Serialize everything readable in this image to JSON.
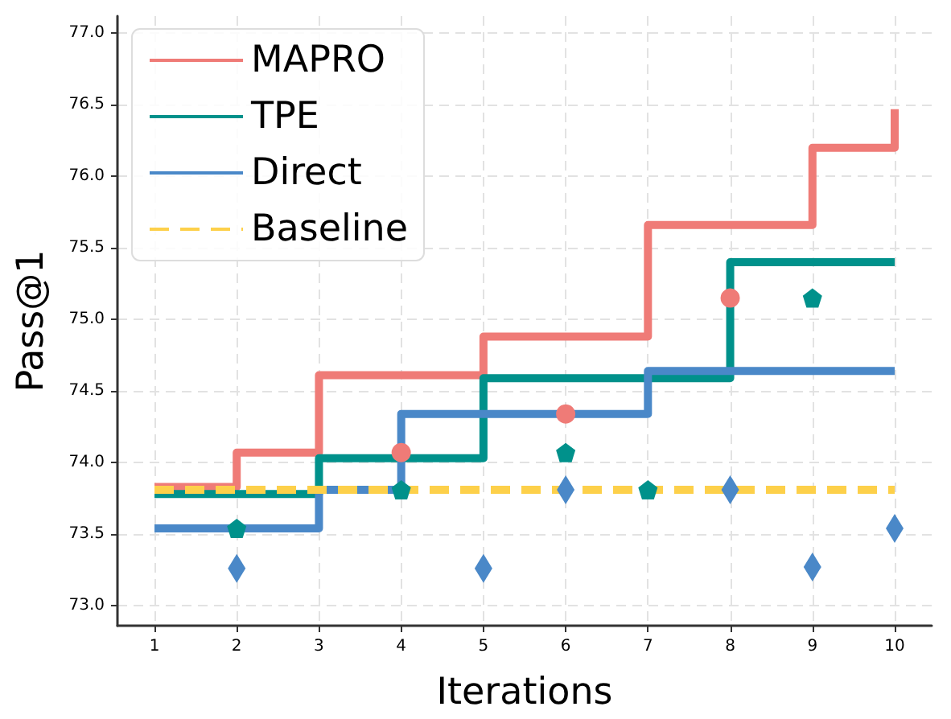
{
  "chart_data": {
    "type": "step",
    "xlabel": "Iterations",
    "ylabel": "Pass@1",
    "x": [
      1,
      2,
      3,
      4,
      5,
      6,
      7,
      8,
      9,
      10
    ],
    "xlim": [
      0.55,
      10.45
    ],
    "xticks": [
      1,
      2,
      3,
      4,
      5,
      6,
      7,
      8,
      9,
      10
    ],
    "ylim": [
      72.86,
      77.12
    ],
    "yticks": [
      {
        "value": 73,
        "label": "73.0"
      },
      73.5,
      {
        "value": 74,
        "label": "74.0"
      },
      74.5,
      {
        "value": 75,
        "label": "75.0"
      },
      75.5,
      {
        "value": 76,
        "label": "76.0"
      },
      76.5,
      {
        "value": 77,
        "label": "77.0"
      }
    ],
    "grid": true,
    "legend": "top left",
    "series": [
      {
        "name": "MAPRO",
        "color": "#ef7b77",
        "line_style": "solid",
        "values": [
          73.83,
          74.07,
          74.61,
          74.61,
          74.88,
          74.88,
          75.66,
          75.66,
          76.2,
          76.47
        ]
      },
      {
        "name": "TPE",
        "color": "#00918b",
        "line_style": "solid",
        "values": [
          73.78,
          73.78,
          74.03,
          74.03,
          74.59,
          74.59,
          74.59,
          75.4,
          75.4,
          75.4
        ]
      },
      {
        "name": "Direct",
        "color": "#4a88c8",
        "line_style": "solid",
        "values": [
          73.54,
          73.54,
          73.81,
          74.34,
          74.34,
          74.34,
          74.64,
          74.64,
          74.64,
          74.64
        ]
      },
      {
        "name": "Baseline",
        "type": "line",
        "color": "#fdd04a",
        "line_style": "dashed",
        "values": [
          73.81,
          73.81,
          73.81,
          73.81,
          73.81,
          73.81,
          73.81,
          73.81,
          73.81,
          73.81
        ]
      },
      {
        "type": "scatter",
        "color": "#ef7b77",
        "marker": "circle",
        "x": [
          4,
          6,
          8
        ],
        "values": [
          74.07,
          74.34,
          75.15
        ]
      },
      {
        "type": "scatter",
        "color": "#00918b",
        "x": [
          2,
          4,
          6,
          7,
          9
        ],
        "values": [
          73.54,
          73.81,
          74.07,
          73.81,
          75.15
        ]
      },
      {
        "type": "scatter",
        "color": "#4a88c8",
        "marker": "diamond",
        "x": [
          2,
          5,
          6,
          8,
          9,
          10
        ],
        "values": [
          73.26,
          73.26,
          73.81,
          73.81,
          73.27,
          73.54
        ]
      }
    ]
  }
}
